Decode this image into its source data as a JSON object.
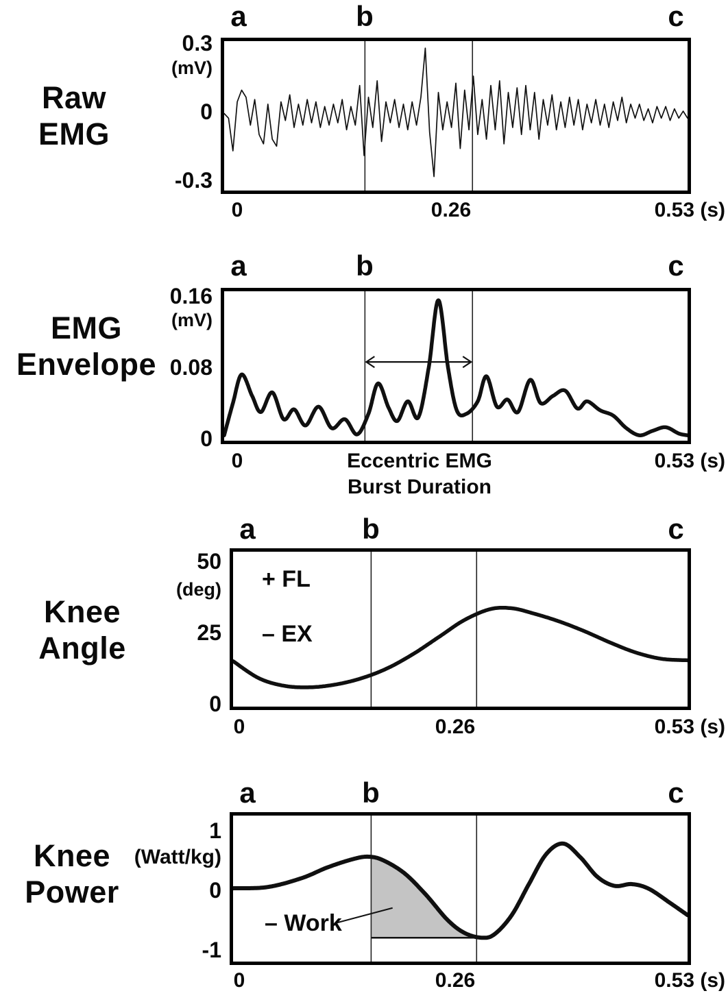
{
  "chart_data": [
    {
      "id": "raw_emg",
      "type": "line",
      "title": "Raw EMG",
      "title_lines": [
        "Raw",
        "EMG"
      ],
      "markers": [
        "a",
        "b",
        "c"
      ],
      "ylabel": "(mV)",
      "yticks": [
        0.3,
        0,
        -0.3
      ],
      "ytick_labels": [
        "0.3",
        "0",
        "-0.3"
      ],
      "ylim": [
        -0.33,
        0.31
      ],
      "xlim": [
        0,
        0.53
      ],
      "xticks": [
        0,
        0.26,
        0.53
      ],
      "xtick_labels": [
        "0",
        "0.26",
        "0.53 (s)"
      ],
      "xunit": "s",
      "event_lines_s": [
        0.161,
        0.284
      ],
      "stroke_width": 1.7,
      "x_start": 0,
      "x_step": 0.005,
      "y": [
        0.0,
        -0.02,
        -0.16,
        0.05,
        0.1,
        0.07,
        -0.05,
        0.06,
        -0.09,
        -0.13,
        0.04,
        -0.11,
        -0.14,
        0.05,
        -0.03,
        0.08,
        -0.06,
        0.04,
        -0.05,
        0.06,
        -0.04,
        0.05,
        -0.06,
        0.03,
        -0.05,
        0.04,
        -0.04,
        0.06,
        -0.07,
        0.03,
        -0.05,
        0.12,
        -0.18,
        0.07,
        -0.06,
        0.14,
        -0.12,
        0.05,
        -0.04,
        0.06,
        -0.06,
        0.04,
        -0.07,
        0.05,
        -0.05,
        0.07,
        0.28,
        -0.08,
        -0.27,
        0.09,
        -0.07,
        0.05,
        -0.06,
        0.13,
        -0.15,
        0.1,
        -0.07,
        0.16,
        -0.09,
        0.06,
        -0.11,
        0.12,
        -0.07,
        0.14,
        -0.13,
        0.09,
        -0.06,
        0.11,
        -0.09,
        0.12,
        -0.07,
        0.09,
        -0.11,
        0.06,
        -0.05,
        0.08,
        -0.07,
        0.05,
        -0.06,
        0.07,
        -0.05,
        0.06,
        -0.07,
        0.04,
        -0.04,
        0.06,
        -0.05,
        0.04,
        -0.06,
        0.05,
        -0.03,
        0.07,
        -0.04,
        0.04,
        -0.02,
        0.04,
        -0.03,
        0.02,
        -0.04,
        0.03,
        -0.02,
        0.03,
        -0.03,
        0.02,
        -0.02,
        0.01,
        -0.02
      ]
    },
    {
      "id": "emg_envelope",
      "type": "line",
      "title": "EMG Envelope",
      "title_lines": [
        "EMG",
        "Envelope"
      ],
      "markers": [
        "a",
        "b",
        "c"
      ],
      "ylabel": "(mV)",
      "yticks": [
        0.16,
        0.08,
        0
      ],
      "ytick_labels": [
        "0.16",
        "0.08",
        "0"
      ],
      "ylim": [
        -0.002,
        0.165
      ],
      "xlim": [
        0,
        0.53
      ],
      "xticks": [
        0,
        0.53
      ],
      "xtick_labels": [
        "0",
        "0.53 (s)"
      ],
      "xunit": "s",
      "annotation_lines": [
        "Eccentric EMG",
        "Burst Duration"
      ],
      "event_lines_s": [
        0.161,
        0.284
      ],
      "arrow": {
        "span_s": [
          0.161,
          0.284
        ],
        "y_mv": 0.086
      },
      "clamp_min": 0.0015,
      "stroke_width": 5.5,
      "points": [
        [
          0,
          0.004
        ],
        [
          0.01,
          0.04
        ],
        [
          0.02,
          0.072
        ],
        [
          0.032,
          0.048
        ],
        [
          0.042,
          0.03
        ],
        [
          0.055,
          0.052
        ],
        [
          0.068,
          0.022
        ],
        [
          0.08,
          0.033
        ],
        [
          0.093,
          0.015
        ],
        [
          0.108,
          0.036
        ],
        [
          0.123,
          0.012
        ],
        [
          0.138,
          0.022
        ],
        [
          0.152,
          0.005
        ],
        [
          0.165,
          0.028
        ],
        [
          0.176,
          0.062
        ],
        [
          0.188,
          0.035
        ],
        [
          0.198,
          0.02
        ],
        [
          0.21,
          0.042
        ],
        [
          0.222,
          0.024
        ],
        [
          0.234,
          0.08
        ],
        [
          0.245,
          0.155
        ],
        [
          0.256,
          0.08
        ],
        [
          0.266,
          0.032
        ],
        [
          0.277,
          0.028
        ],
        [
          0.29,
          0.042
        ],
        [
          0.3,
          0.07
        ],
        [
          0.312,
          0.036
        ],
        [
          0.324,
          0.044
        ],
        [
          0.336,
          0.03
        ],
        [
          0.35,
          0.066
        ],
        [
          0.362,
          0.04
        ],
        [
          0.376,
          0.048
        ],
        [
          0.39,
          0.054
        ],
        [
          0.404,
          0.034
        ],
        [
          0.415,
          0.042
        ],
        [
          0.43,
          0.032
        ],
        [
          0.445,
          0.026
        ],
        [
          0.46,
          0.012
        ],
        [
          0.475,
          0.004
        ],
        [
          0.49,
          0.009
        ],
        [
          0.505,
          0.013
        ],
        [
          0.52,
          0.006
        ],
        [
          0.53,
          0.004
        ]
      ]
    },
    {
      "id": "knee_angle",
      "type": "line",
      "title": "Knee Angle",
      "title_lines": [
        "Knee",
        "Angle"
      ],
      "markers": [
        "a",
        "b",
        "c"
      ],
      "ylabel": "(deg)",
      "yticks": [
        50,
        25,
        0
      ],
      "ytick_labels": [
        "50",
        "25",
        "0"
      ],
      "ylim": [
        -1,
        53.5
      ],
      "xlim": [
        0,
        0.53
      ],
      "xticks": [
        0,
        0.26,
        0.53
      ],
      "xtick_labels": [
        "0",
        "0.26",
        "0.53 (s)"
      ],
      "xunit": "s",
      "annotations": [
        "+ FL",
        "– EX"
      ],
      "event_lines_s": [
        0.161,
        0.284
      ],
      "stroke_width": 5.5,
      "points": [
        [
          0,
          15
        ],
        [
          0.03,
          9
        ],
        [
          0.06,
          6.3
        ],
        [
          0.09,
          5.8
        ],
        [
          0.12,
          6.8
        ],
        [
          0.15,
          9
        ],
        [
          0.18,
          12.5
        ],
        [
          0.21,
          17.5
        ],
        [
          0.24,
          23.5
        ],
        [
          0.27,
          29.5
        ],
        [
          0.3,
          33.3
        ],
        [
          0.325,
          33.6
        ],
        [
          0.35,
          31.8
        ],
        [
          0.38,
          29
        ],
        [
          0.41,
          25.5
        ],
        [
          0.44,
          21.5
        ],
        [
          0.47,
          18
        ],
        [
          0.5,
          15.8
        ],
        [
          0.53,
          15.3
        ]
      ]
    },
    {
      "id": "knee_power",
      "type": "line",
      "title": "Knee Power",
      "title_lines": [
        "Knee",
        "Power"
      ],
      "markers": [
        "a",
        "b",
        "c"
      ],
      "ylabel": "(Watt/kg)",
      "yticks": [
        1,
        0,
        -1
      ],
      "ytick_labels": [
        "1",
        "0",
        "-1"
      ],
      "ylim": [
        -1.2,
        1.25
      ],
      "xlim": [
        0,
        0.53
      ],
      "xticks": [
        0,
        0.26,
        0.53
      ],
      "xtick_labels": [
        "0",
        "0.26",
        "0.53 (s)"
      ],
      "xunit": "s",
      "event_lines_s": [
        0.161,
        0.284
      ],
      "shaded_region": {
        "x_from_s": 0.161,
        "x_to_s": 0.29,
        "baseline": -0.8,
        "fill": "#c4c4c4",
        "label": "– Work"
      },
      "pointer": {
        "from": [
          0.118,
          -0.56
        ],
        "to": [
          0.186,
          -0.3
        ]
      },
      "stroke_width": 6,
      "points": [
        [
          0,
          0.03
        ],
        [
          0.04,
          0.05
        ],
        [
          0.08,
          0.2
        ],
        [
          0.11,
          0.38
        ],
        [
          0.14,
          0.52
        ],
        [
          0.158,
          0.56
        ],
        [
          0.175,
          0.5
        ],
        [
          0.2,
          0.28
        ],
        [
          0.225,
          -0.08
        ],
        [
          0.25,
          -0.5
        ],
        [
          0.27,
          -0.72
        ],
        [
          0.29,
          -0.8
        ],
        [
          0.305,
          -0.74
        ],
        [
          0.325,
          -0.42
        ],
        [
          0.345,
          0.1
        ],
        [
          0.365,
          0.6
        ],
        [
          0.385,
          0.78
        ],
        [
          0.405,
          0.55
        ],
        [
          0.425,
          0.22
        ],
        [
          0.445,
          0.07
        ],
        [
          0.465,
          0.1
        ],
        [
          0.485,
          0.02
        ],
        [
          0.51,
          -0.22
        ],
        [
          0.53,
          -0.42
        ]
      ]
    }
  ],
  "colors": {
    "line": "#101010",
    "frame": "#000000",
    "shade": "#c4c4c4",
    "background": "#ffffff"
  }
}
